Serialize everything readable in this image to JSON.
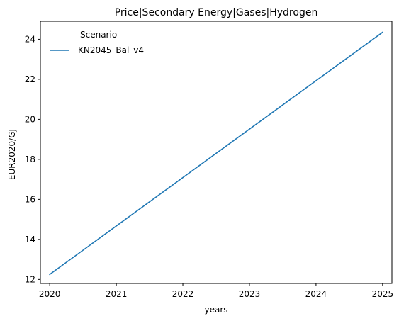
{
  "chart_data": {
    "type": "line",
    "title": "Price|Secondary Energy|Gases|Hydrogen",
    "xlabel": "years",
    "ylabel": "EUR2020/GJ",
    "x": [
      2020,
      2025
    ],
    "xlim": [
      2019.86,
      2025.14
    ],
    "ylim": [
      11.8,
      24.9
    ],
    "xticks": [
      2020,
      2021,
      2022,
      2023,
      2024,
      2025
    ],
    "yticks": [
      12,
      14,
      16,
      18,
      20,
      22,
      24
    ],
    "grid": false,
    "legend": {
      "title": "Scenario",
      "placement": "top-left"
    },
    "series": [
      {
        "name": "KN2045_Bal_v4",
        "color": "#1f77b4",
        "values": [
          12.25,
          24.35
        ]
      }
    ]
  }
}
